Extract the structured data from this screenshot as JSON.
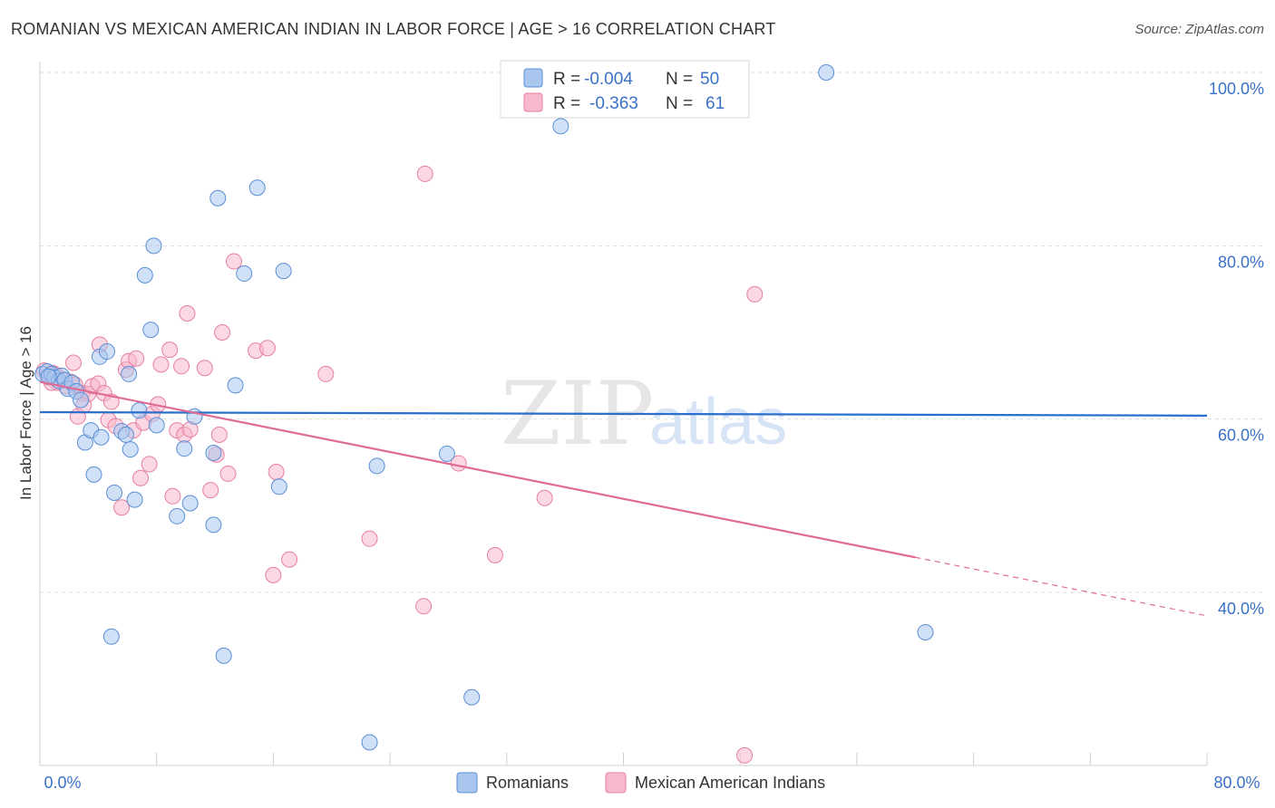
{
  "header": {
    "title": "ROMANIAN VS MEXICAN AMERICAN INDIAN IN LABOR FORCE | AGE > 16 CORRELATION CHART",
    "source": "Source: ZipAtlas.com"
  },
  "colors": {
    "romanians_fill": "#a9c6ee",
    "romanians_stroke": "#5b8fd6",
    "romanians_line": "#2a6fcc",
    "mexican_fill": "#f7b8cc",
    "mexican_stroke": "#e77fa0",
    "mexican_line": "#e06b95",
    "tick_label": "#3a72c8",
    "watermark": "#e8e8e8"
  },
  "legend": {
    "rows": [
      {
        "r_label": "R =",
        "r_value": "-0.004",
        "n_label": "N =",
        "n_value": "50"
      },
      {
        "r_label": "R =",
        "r_value": "-0.363",
        "n_label": "N =",
        "n_value": "61"
      }
    ]
  },
  "bottom_legend": [
    "Romanians",
    "Mexican American Indians"
  ],
  "watermark": {
    "zip": "ZIP",
    "atlas": "atlas"
  },
  "chart_data": {
    "type": "scatter",
    "title": "ROMANIAN VS MEXICAN AMERICAN INDIAN IN LABOR FORCE | AGE > 16 CORRELATION CHART",
    "xlabel": "",
    "ylabel": "In Labor Force | Age > 16",
    "xlim": [
      0,
      80
    ],
    "ylim": [
      20,
      102
    ],
    "x_tick_labels": [
      "0.0%",
      "80.0%"
    ],
    "y_ticks": [
      40,
      60,
      80,
      100
    ],
    "y_tick_labels": [
      "40.0%",
      "60.0%",
      "80.0%",
      "100.0%"
    ],
    "grid": true,
    "series": [
      {
        "name": "Romanians",
        "r": -0.004,
        "n": 50,
        "trend": {
          "x0": 0,
          "y0": 60.8,
          "x1": 80,
          "y1": 60.4
        },
        "points": [
          [
            0.2,
            65.2
          ],
          [
            0.5,
            65.5
          ],
          [
            0.8,
            65.2
          ],
          [
            1.0,
            64.8
          ],
          [
            1.3,
            64.4
          ],
          [
            1.5,
            65.0
          ],
          [
            1.7,
            64.5
          ],
          [
            1.9,
            63.5
          ],
          [
            2.2,
            64.2
          ],
          [
            2.5,
            63.2
          ],
          [
            2.8,
            62.2
          ],
          [
            3.1,
            57.3
          ],
          [
            3.5,
            58.7
          ],
          [
            3.7,
            53.6
          ],
          [
            4.2,
            57.9
          ],
          [
            4.1,
            67.2
          ],
          [
            4.6,
            67.8
          ],
          [
            5.1,
            51.5
          ],
          [
            5.6,
            58.6
          ],
          [
            5.9,
            58.2
          ],
          [
            6.1,
            65.2
          ],
          [
            6.2,
            56.5
          ],
          [
            6.5,
            50.7
          ],
          [
            6.8,
            61.0
          ],
          [
            7.2,
            76.6
          ],
          [
            7.6,
            70.3
          ],
          [
            7.8,
            80.0
          ],
          [
            8.0,
            59.3
          ],
          [
            9.4,
            48.8
          ],
          [
            9.9,
            56.6
          ],
          [
            10.3,
            50.3
          ],
          [
            10.6,
            60.3
          ],
          [
            11.9,
            56.1
          ],
          [
            11.9,
            47.8
          ],
          [
            12.2,
            85.5
          ],
          [
            12.6,
            32.7
          ],
          [
            13.4,
            63.9
          ],
          [
            14.0,
            76.8
          ],
          [
            14.9,
            86.7
          ],
          [
            16.7,
            77.1
          ],
          [
            16.4,
            52.2
          ],
          [
            22.6,
            22.7
          ],
          [
            23.1,
            54.6
          ],
          [
            27.9,
            56.0
          ],
          [
            29.6,
            27.9
          ],
          [
            35.7,
            93.8
          ],
          [
            53.9,
            100.0
          ],
          [
            60.7,
            35.4
          ],
          [
            4.9,
            34.9
          ],
          [
            0.6,
            64.9
          ]
        ]
      },
      {
        "name": "Mexican American Indians",
        "r": -0.363,
        "n": 61,
        "trend": {
          "x0": 0,
          "y0": 64.3,
          "x1": 80,
          "y1": 37.3,
          "solid_until_x": 60.0
        },
        "points": [
          [
            0.3,
            65.6
          ],
          [
            0.6,
            64.8
          ],
          [
            0.9,
            65.3
          ],
          [
            1.2,
            64.2
          ],
          [
            1.5,
            64.6
          ],
          [
            1.8,
            63.8
          ],
          [
            2.1,
            64.3
          ],
          [
            2.3,
            66.5
          ],
          [
            2.6,
            60.3
          ],
          [
            2.9,
            63.0
          ],
          [
            3.3,
            62.9
          ],
          [
            3.6,
            63.8
          ],
          [
            4.0,
            64.1
          ],
          [
            4.1,
            68.6
          ],
          [
            4.4,
            63.0
          ],
          [
            4.7,
            59.9
          ],
          [
            4.9,
            62.0
          ],
          [
            5.2,
            59.2
          ],
          [
            5.6,
            49.8
          ],
          [
            5.9,
            65.7
          ],
          [
            6.1,
            66.7
          ],
          [
            6.4,
            58.7
          ],
          [
            6.6,
            67.0
          ],
          [
            6.9,
            53.2
          ],
          [
            7.1,
            59.6
          ],
          [
            7.5,
            54.8
          ],
          [
            7.7,
            60.6
          ],
          [
            8.1,
            61.7
          ],
          [
            8.3,
            66.3
          ],
          [
            8.9,
            68.0
          ],
          [
            9.1,
            51.1
          ],
          [
            9.4,
            58.7
          ],
          [
            9.7,
            66.1
          ],
          [
            9.9,
            58.2
          ],
          [
            10.1,
            72.2
          ],
          [
            10.3,
            58.8
          ],
          [
            11.3,
            65.9
          ],
          [
            11.7,
            51.8
          ],
          [
            12.1,
            55.9
          ],
          [
            12.3,
            58.2
          ],
          [
            12.5,
            70.0
          ],
          [
            12.9,
            53.7
          ],
          [
            13.3,
            78.2
          ],
          [
            14.8,
            67.9
          ],
          [
            15.6,
            68.2
          ],
          [
            16.0,
            42.0
          ],
          [
            16.2,
            53.9
          ],
          [
            17.1,
            43.8
          ],
          [
            19.6,
            65.2
          ],
          [
            22.6,
            46.2
          ],
          [
            26.3,
            38.4
          ],
          [
            26.4,
            88.3
          ],
          [
            28.7,
            54.9
          ],
          [
            31.2,
            44.3
          ],
          [
            34.6,
            50.9
          ],
          [
            49.0,
            74.4
          ],
          [
            48.3,
            21.2
          ],
          [
            2.4,
            64.0
          ],
          [
            1.1,
            65.1
          ],
          [
            3.0,
            61.6
          ],
          [
            0.8,
            64.2
          ]
        ]
      }
    ]
  }
}
